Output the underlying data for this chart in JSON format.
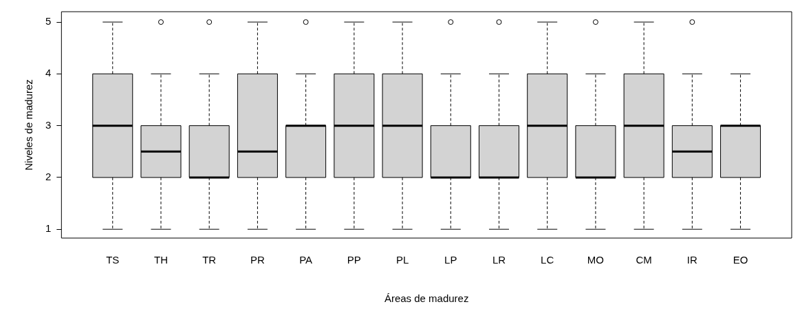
{
  "chart_data": {
    "type": "box",
    "xlabel": "Áreas de madurez",
    "ylabel": "Niveles de madurez",
    "color": "#d3d3d3",
    "grid": false,
    "categories": [
      "TS",
      "TH",
      "TR",
      "PR",
      "PA",
      "PP",
      "PL",
      "LP",
      "LR",
      "LC",
      "MO",
      "CM",
      "IR",
      "EO"
    ],
    "ylim": [
      0.83,
      5.2
    ],
    "yticks": [
      1,
      2,
      3,
      4,
      5
    ],
    "boxes": [
      {
        "low": 1,
        "q1": 2,
        "median": 3,
        "q3": 4,
        "high": 5
      },
      {
        "low": 1,
        "q1": 2,
        "median": 2.5,
        "q3": 3,
        "high": 4,
        "outliers": [
          5
        ]
      },
      {
        "low": 1,
        "q1": 2,
        "median": 2,
        "q3": 3,
        "high": 4,
        "outliers": [
          5
        ]
      },
      {
        "low": 1,
        "q1": 2,
        "median": 2.5,
        "q3": 4,
        "high": 5
      },
      {
        "low": 1,
        "q1": 2,
        "median": 3,
        "q3": 3,
        "high": 4,
        "outliers": [
          5
        ]
      },
      {
        "low": 1,
        "q1": 2,
        "median": 3,
        "q3": 4,
        "high": 5
      },
      {
        "low": 1,
        "q1": 2,
        "median": 3,
        "q3": 4,
        "high": 5
      },
      {
        "low": 1,
        "q1": 2,
        "median": 2,
        "q3": 3,
        "high": 4,
        "outliers": [
          5
        ]
      },
      {
        "low": 1,
        "q1": 2,
        "median": 2,
        "q3": 3,
        "high": 4,
        "outliers": [
          5
        ]
      },
      {
        "low": 1,
        "q1": 2,
        "median": 3,
        "q3": 4,
        "high": 5
      },
      {
        "low": 1,
        "q1": 2,
        "median": 2,
        "q3": 3,
        "high": 4,
        "outliers": [
          5
        ]
      },
      {
        "low": 1,
        "q1": 2,
        "median": 3,
        "q3": 4,
        "high": 5
      },
      {
        "low": 1,
        "q1": 2,
        "median": 2.5,
        "q3": 3,
        "high": 4,
        "outliers": [
          5
        ]
      },
      {
        "low": 1,
        "q1": 2,
        "median": 3,
        "q3": 3,
        "high": 4
      }
    ]
  }
}
